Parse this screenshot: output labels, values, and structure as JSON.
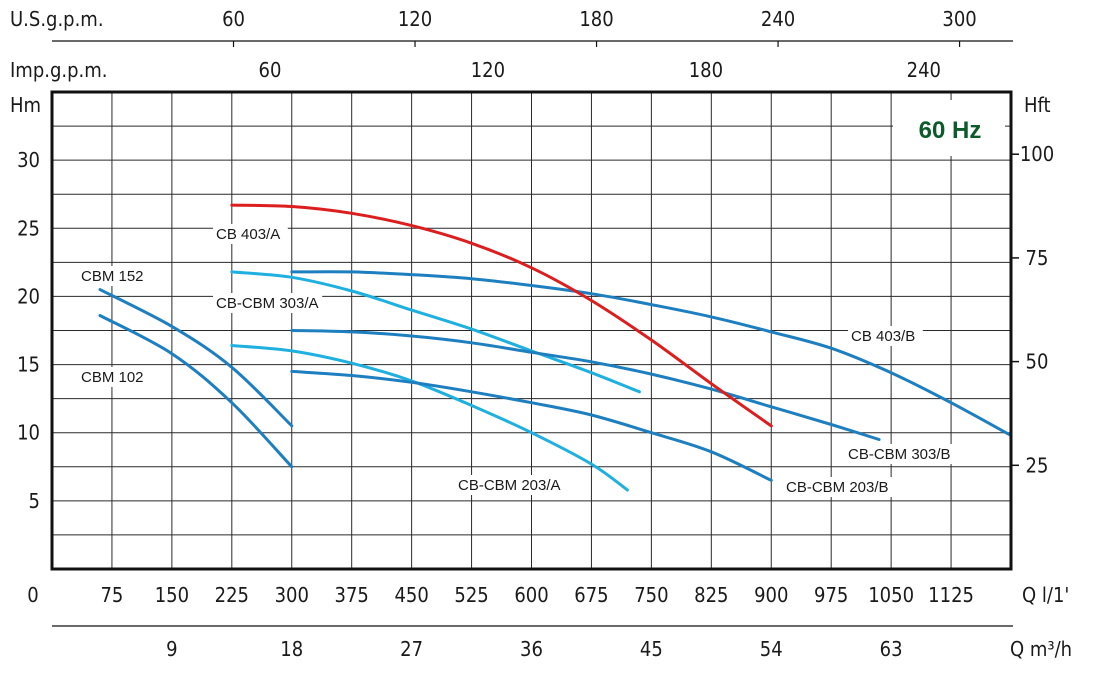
{
  "chart_data": {
    "type": "line",
    "frequency_badge": "60 Hz",
    "colors": {
      "blue": "#1e7fc0",
      "light_blue": "#1fb0e0",
      "red": "#dc1e1e",
      "badge": "#0d5a2a"
    },
    "axes": {
      "q_lmin": {
        "label": "Q l/1'",
        "range": [
          0,
          1200
        ],
        "ticks": [
          "0",
          "75",
          "150",
          "225",
          "300",
          "375",
          "450",
          "525",
          "600",
          "675",
          "750",
          "825",
          "900",
          "975",
          "1050",
          "1125"
        ]
      },
      "q_m3h": {
        "label": "Q m³/h",
        "range": [
          0,
          72
        ],
        "ticks": [
          "9",
          "18",
          "27",
          "36",
          "45",
          "54",
          "63"
        ]
      },
      "usgpm": {
        "label": "U.S.g.p.m.",
        "range": [
          0,
          317
        ],
        "ticks": [
          "60",
          "120",
          "180",
          "240",
          "300"
        ]
      },
      "impgpm": {
        "label": "Imp.g.p.m.",
        "range": [
          0,
          264
        ],
        "ticks": [
          "60",
          "120",
          "180",
          "240"
        ]
      },
      "hm": {
        "label": "Hm",
        "range": [
          0,
          35
        ],
        "ticks": [
          "0",
          "5",
          "10",
          "15",
          "20",
          "25",
          "30"
        ]
      },
      "hft": {
        "label": "Hft",
        "range": [
          0,
          115
        ],
        "ticks": [
          "25",
          "50",
          "75",
          "100"
        ]
      }
    },
    "series": [
      {
        "name": "CBM 102",
        "color": "#1e7fc0",
        "x": [
          60,
          150,
          225,
          300
        ],
        "y": [
          18.6,
          15.8,
          12.2,
          7.5
        ]
      },
      {
        "name": "CBM 152",
        "color": "#1e7fc0",
        "x": [
          60,
          150,
          225,
          300
        ],
        "y": [
          20.5,
          17.8,
          14.8,
          10.5
        ]
      },
      {
        "name": "CB-CBM 203/A",
        "color": "#1fb0e0",
        "x": [
          225,
          300,
          375,
          450,
          525,
          600,
          675,
          720
        ],
        "y": [
          16.4,
          16.0,
          15.1,
          13.8,
          12.0,
          10.0,
          7.7,
          5.8
        ]
      },
      {
        "name": "CB-CBM 303/A",
        "color": "#1fb0e0",
        "x": [
          225,
          300,
          375,
          450,
          525,
          600,
          675,
          735
        ],
        "y": [
          21.8,
          21.4,
          20.4,
          19.0,
          17.6,
          16.0,
          14.4,
          13.0
        ]
      },
      {
        "name": "CB-CBM 203/B",
        "color": "#1e7fc0",
        "x": [
          300,
          375,
          450,
          525,
          600,
          675,
          750,
          825,
          900
        ],
        "y": [
          14.5,
          14.2,
          13.7,
          13.0,
          12.2,
          11.3,
          10.0,
          8.6,
          6.5
        ]
      },
      {
        "name": "CB-CBM 303/B",
        "color": "#1e7fc0",
        "x": [
          300,
          375,
          450,
          525,
          600,
          675,
          750,
          825,
          900,
          975,
          1035
        ],
        "y": [
          17.5,
          17.4,
          17.1,
          16.6,
          15.9,
          15.2,
          14.3,
          13.2,
          11.9,
          10.6,
          9.5
        ]
      },
      {
        "name": "CB 403/B",
        "color": "#1e7fc0",
        "x": [
          300,
          375,
          450,
          525,
          600,
          675,
          750,
          825,
          900,
          975,
          1050,
          1125,
          1200
        ],
        "y": [
          21.8,
          21.8,
          21.6,
          21.3,
          20.8,
          20.2,
          19.4,
          18.5,
          17.4,
          16.2,
          14.4,
          12.2,
          9.8
        ]
      },
      {
        "name": "CB 403/A",
        "color": "#dc1e1e",
        "x": [
          225,
          300,
          375,
          450,
          525,
          600,
          675,
          750,
          825,
          900
        ],
        "y": [
          26.7,
          26.6,
          26.1,
          25.2,
          23.9,
          22.1,
          19.7,
          16.8,
          13.6,
          10.5
        ]
      }
    ]
  },
  "labels": [
    {
      "text": "CB 403/A",
      "series": "CB 403/A"
    },
    {
      "text": "CBM 152",
      "series": "CBM 152"
    },
    {
      "text": "CB-CBM 303/A",
      "series": "CB-CBM 303/A"
    },
    {
      "text": "CBM 102",
      "series": "CBM 102"
    },
    {
      "text": "CB 403/B",
      "series": "CB 403/B"
    },
    {
      "text": "CB-CBM 303/B",
      "series": "CB-CBM 303/B"
    },
    {
      "text": "CB-CBM 203/A",
      "series": "CB-CBM 203/A"
    },
    {
      "text": "CB-CBM 203/B",
      "series": "CB-CBM 203/B"
    }
  ]
}
